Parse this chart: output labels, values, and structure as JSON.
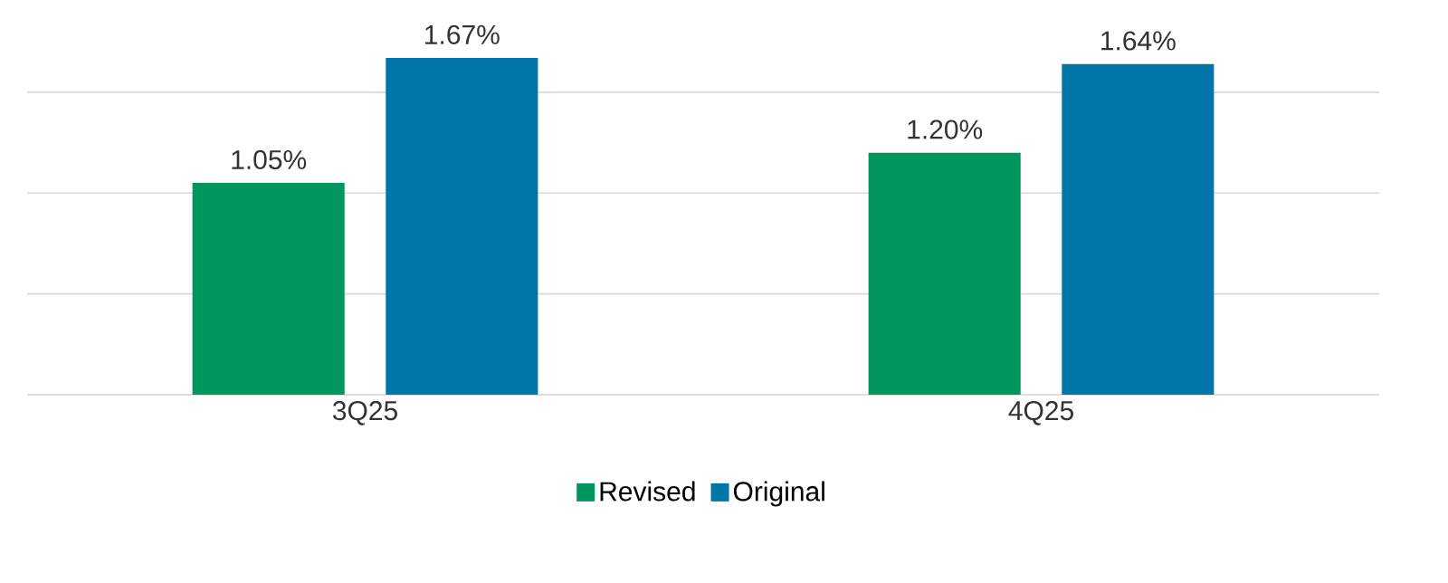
{
  "chart_data": {
    "type": "bar",
    "categories": [
      "3Q25",
      "4Q25"
    ],
    "series": [
      {
        "name": "Revised",
        "color": "#00965e",
        "values": [
          1.05,
          1.2
        ],
        "value_labels": [
          "1.05%",
          "1.20%"
        ]
      },
      {
        "name": "Original",
        "color": "#0076a8",
        "values": [
          1.67,
          1.64
        ],
        "value_labels": [
          "1.67%",
          "1.64%"
        ]
      }
    ],
    "tick_labels": "x",
    "grid": "y",
    "legend": "bottom"
  }
}
